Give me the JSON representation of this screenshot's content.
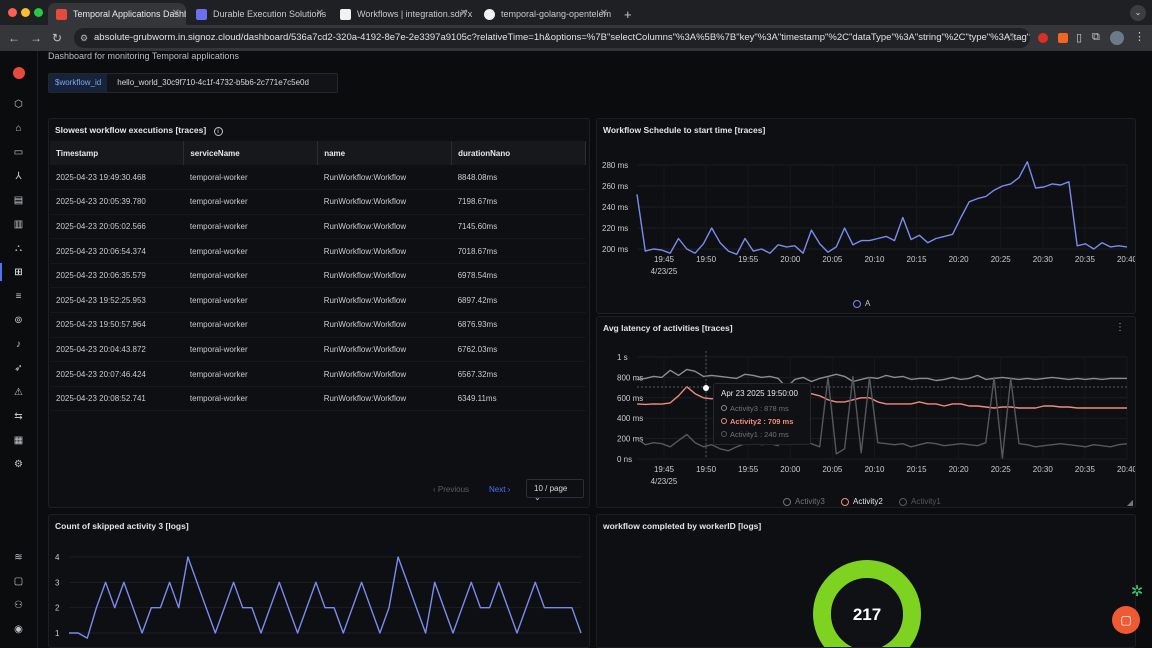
{
  "browser": {
    "tabs": [
      {
        "title": "Temporal Applications Dashb",
        "active": true,
        "color": "#e64a3b"
      },
      {
        "title": "Durable Execution Solutions",
        "active": false,
        "color": "#6b6ff0"
      },
      {
        "title": "Workflows | integration.sdr7x",
        "active": false,
        "color": "#ffffff"
      },
      {
        "title": "temporal-golang-opentelem",
        "active": false,
        "color": "#ffffff"
      }
    ],
    "url": "absolute-grubworm.in.signoz.cloud/dashboard/536a7cd2-320a-4192-8e7e-2e3397a9105c?relativeTime=1h&options=%7B\"selectColumns\"%3A%5B%7B\"key\"%3A\"timestamp\"%2C\"dataType\"%3A\"string\"%2C\"type\"%3A\"tag\"..."
  },
  "dashboard": {
    "subtitle": "Dashboard for monitoring Temporal applications",
    "variable_key": "$workflow_id",
    "variable_value": "hello_world_30c9f710-4c1f-4732-b5b6-2c771e7c5e0d"
  },
  "table_panel": {
    "title": "Slowest workflow executions [traces]",
    "columns": [
      "Timestamp",
      "serviceName",
      "name",
      "durationNano"
    ],
    "rows": [
      [
        "2025-04-23 19:49:30.468",
        "temporal-worker",
        "RunWorkflow:Workflow",
        "8848.08ms"
      ],
      [
        "2025-04-23 20:05:39.780",
        "temporal-worker",
        "RunWorkflow:Workflow",
        "7198.67ms"
      ],
      [
        "2025-04-23 20:05:02.566",
        "temporal-worker",
        "RunWorkflow:Workflow",
        "7145.60ms"
      ],
      [
        "2025-04-23 20:06:54.374",
        "temporal-worker",
        "RunWorkflow:Workflow",
        "7018.67ms"
      ],
      [
        "2025-04-23 20:06:35.579",
        "temporal-worker",
        "RunWorkflow:Workflow",
        "6978.54ms"
      ],
      [
        "2025-04-23 19:52:25.953",
        "temporal-worker",
        "RunWorkflow:Workflow",
        "6897.42ms"
      ],
      [
        "2025-04-23 19:50:57.964",
        "temporal-worker",
        "RunWorkflow:Workflow",
        "6876.93ms"
      ],
      [
        "2025-04-23 20:04:43.872",
        "temporal-worker",
        "RunWorkflow:Workflow",
        "6762.03ms"
      ],
      [
        "2025-04-23 20:07:46.424",
        "temporal-worker",
        "RunWorkflow:Workflow",
        "6567.32ms"
      ],
      [
        "2025-04-23 20:08:52.741",
        "temporal-worker",
        "RunWorkflow:Workflow",
        "6349.11ms"
      ]
    ],
    "pager": {
      "previous": "Previous",
      "next": "Next",
      "page_size": "10 / page"
    }
  },
  "x_ticks": [
    "19:45",
    "19:50",
    "19:55",
    "20:00",
    "20:05",
    "20:10",
    "20:15",
    "20:20",
    "20:25",
    "20:30",
    "20:35",
    "20:40"
  ],
  "x_date": "4/23/25",
  "chart_data": [
    {
      "type": "line",
      "title": "Workflow Schedule to start time [traces]",
      "y_ticks": [
        "280 ms",
        "260 ms",
        "240 ms",
        "220 ms",
        "200 ms"
      ],
      "ylim": [
        200,
        280
      ],
      "series": [
        {
          "name": "A",
          "color": "#7b8cf0",
          "values": [
            252,
            198,
            200,
            199,
            196,
            210,
            200,
            196,
            205,
            220,
            206,
            198,
            195,
            210,
            198,
            200,
            196,
            204,
            202,
            203,
            196,
            218,
            205,
            197,
            202,
            220,
            204,
            208,
            208,
            210,
            212,
            208,
            230,
            209,
            213,
            206,
            210,
            212,
            214,
            230,
            245,
            248,
            250,
            256,
            260,
            262,
            268,
            283,
            258,
            259,
            262,
            261,
            264,
            203,
            205,
            200,
            206,
            202,
            203,
            202
          ]
        }
      ]
    },
    {
      "type": "line",
      "title": "Avg latency of activities [traces]",
      "y_ticks": [
        "1 s",
        "800 ms",
        "600 ms",
        "400 ms",
        "200 ms",
        "0 ns"
      ],
      "ylim": [
        0,
        1000
      ],
      "series": [
        {
          "name": "Activity3",
          "color": "#8a8d93",
          "values": [
            780,
            790,
            810,
            800,
            870,
            820,
            878,
            860,
            810,
            820,
            810,
            800,
            790,
            830,
            820,
            800,
            810,
            790,
            700,
            780,
            800,
            760,
            790,
            810,
            830,
            810,
            760,
            780,
            800,
            790,
            820,
            800,
            810,
            780,
            790,
            790,
            770,
            780,
            800,
            780,
            790,
            820,
            780,
            790,
            800,
            790,
            780,
            790,
            780,
            790,
            800,
            790,
            780,
            790,
            780,
            790,
            780,
            790,
            790,
            790
          ]
        },
        {
          "name": "Activity2",
          "color": "#f08c7d",
          "values": [
            540,
            535,
            540,
            538,
            550,
            620,
            709,
            640,
            600,
            590,
            600,
            590,
            580,
            600,
            610,
            590,
            600,
            590,
            640,
            680,
            660,
            640,
            620,
            580,
            560,
            560,
            580,
            600,
            600,
            560,
            540,
            540,
            540,
            540,
            560,
            540,
            540,
            520,
            540,
            540,
            520,
            520,
            510,
            500,
            510,
            510,
            500,
            500,
            500,
            520,
            520,
            510,
            510,
            500,
            500,
            500,
            500,
            500,
            500,
            500
          ]
        },
        {
          "name": "Activity1",
          "color": "#55585e",
          "values": [
            200,
            140,
            160,
            150,
            120,
            180,
            240,
            160,
            120,
            140,
            100,
            80,
            120,
            150,
            160,
            140,
            150,
            130,
            700,
            660,
            200,
            150,
            120,
            800,
            50,
            100,
            810,
            60,
            800,
            160,
            150,
            140,
            150,
            120,
            140,
            160,
            150,
            130,
            140,
            150,
            140,
            130,
            160,
            800,
            10,
            790,
            150,
            140,
            120,
            130,
            140,
            150,
            140,
            130,
            120,
            140,
            130,
            120,
            140,
            150
          ]
        }
      ],
      "tooltip": {
        "header": "Apr 23 2025 19:50:00",
        "rows": [
          "Activity3 : 878 ms",
          "Activity2 : 709 ms",
          "Activity1 : 240 ms"
        ]
      }
    },
    {
      "type": "line",
      "title": "Count of skipped activity 3 [logs]",
      "y_ticks": [
        "4",
        "3",
        "2",
        "1"
      ],
      "ylim": [
        1,
        4
      ],
      "series": [
        {
          "name": "",
          "color": "#7b8cf0",
          "values": [
            1,
            1,
            0.8,
            2,
            3,
            2,
            3,
            2,
            1,
            2,
            2,
            3,
            2,
            4,
            3,
            2,
            1,
            2,
            3,
            2,
            2,
            1,
            2,
            3,
            2,
            1,
            2,
            3,
            2,
            2,
            1,
            2,
            3,
            2,
            1,
            2,
            4,
            3,
            2,
            1,
            3,
            2,
            1,
            2,
            3,
            2,
            2,
            3,
            2,
            1,
            2,
            3,
            2,
            2,
            2,
            2,
            1
          ]
        }
      ]
    }
  ],
  "donut_panel": {
    "title": "workflow completed by workerID [logs]",
    "value": "217",
    "color": "#7ed321"
  }
}
